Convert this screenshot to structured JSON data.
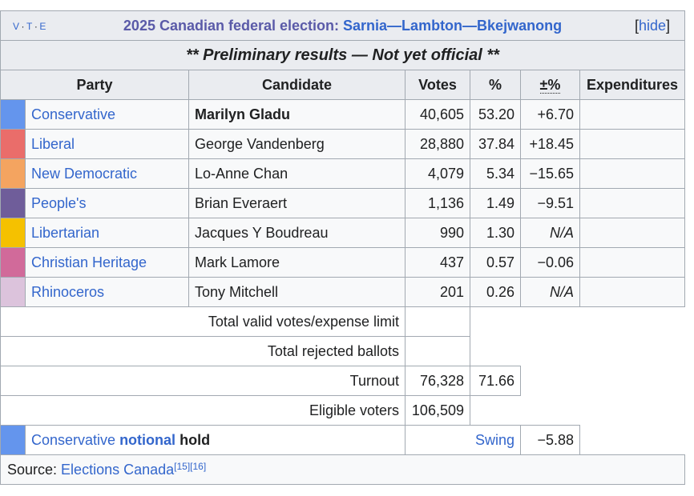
{
  "navbox": {
    "vte": [
      "V",
      "T",
      "E"
    ],
    "title_prefix": "2025 Canadian federal election",
    "title_sep": ": ",
    "riding": "Sarnia—Lambton—Bkejwanong",
    "hide_open": "[",
    "hide_label": "hide",
    "hide_close": "]"
  },
  "notice": "** Preliminary results — Not yet official **",
  "headers": {
    "party": "Party",
    "candidate": "Candidate",
    "votes": "Votes",
    "percent": "%",
    "change": "±%",
    "expenditures": "Expenditures"
  },
  "rows": [
    {
      "color": "#6495ED",
      "party": "Conservative",
      "candidate": "Marilyn Gladu",
      "winner": true,
      "votes": "40,605",
      "pct": "53.20",
      "change": "+6.70",
      "expenditures": ""
    },
    {
      "color": "#EA6D6A",
      "party": "Liberal",
      "candidate": "George Vandenberg",
      "winner": false,
      "votes": "28,880",
      "pct": "37.84",
      "change": "+18.45",
      "expenditures": ""
    },
    {
      "color": "#F4A460",
      "party": "New Democratic",
      "candidate": "Lo-Anne Chan",
      "winner": false,
      "votes": "4,079",
      "pct": "5.34",
      "change": "−15.65",
      "expenditures": ""
    },
    {
      "color": "#6F5D9A",
      "party": "People's",
      "candidate": "Brian Everaert",
      "winner": false,
      "votes": "1,136",
      "pct": "1.49",
      "change": "−9.51",
      "expenditures": ""
    },
    {
      "color": "#F5C100",
      "party": "Libertarian",
      "candidate": "Jacques Y Boudreau",
      "winner": false,
      "votes": "990",
      "pct": "1.30",
      "change": "N/A",
      "expenditures": ""
    },
    {
      "color": "#D16A9A",
      "party": "Christian Heritage",
      "candidate": "Mark Lamore",
      "winner": false,
      "votes": "437",
      "pct": "0.57",
      "change": "−0.06",
      "expenditures": ""
    },
    {
      "color": "#DCC3DC",
      "party": "Rhinoceros",
      "candidate": "Tony Mitchell",
      "winner": false,
      "votes": "201",
      "pct": "0.26",
      "change": "N/A",
      "expenditures": ""
    }
  ],
  "totals": {
    "valid_label": "Total valid votes/expense limit",
    "rejected_label": "Total rejected ballots",
    "turnout_label": "Turnout",
    "turnout_votes": "76,328",
    "turnout_pct": "71.66",
    "eligible_label": "Eligible voters",
    "eligible_value": "106,509"
  },
  "hold": {
    "color": "#6495ED",
    "party": "Conservative",
    "notional": "notional",
    "hold_word": "hold",
    "swing_label": "Swing",
    "swing_value": "−5.88"
  },
  "source": {
    "prefix": "Source: ",
    "link": "Elections Canada",
    "refs": [
      "[15]",
      "[16]"
    ]
  }
}
